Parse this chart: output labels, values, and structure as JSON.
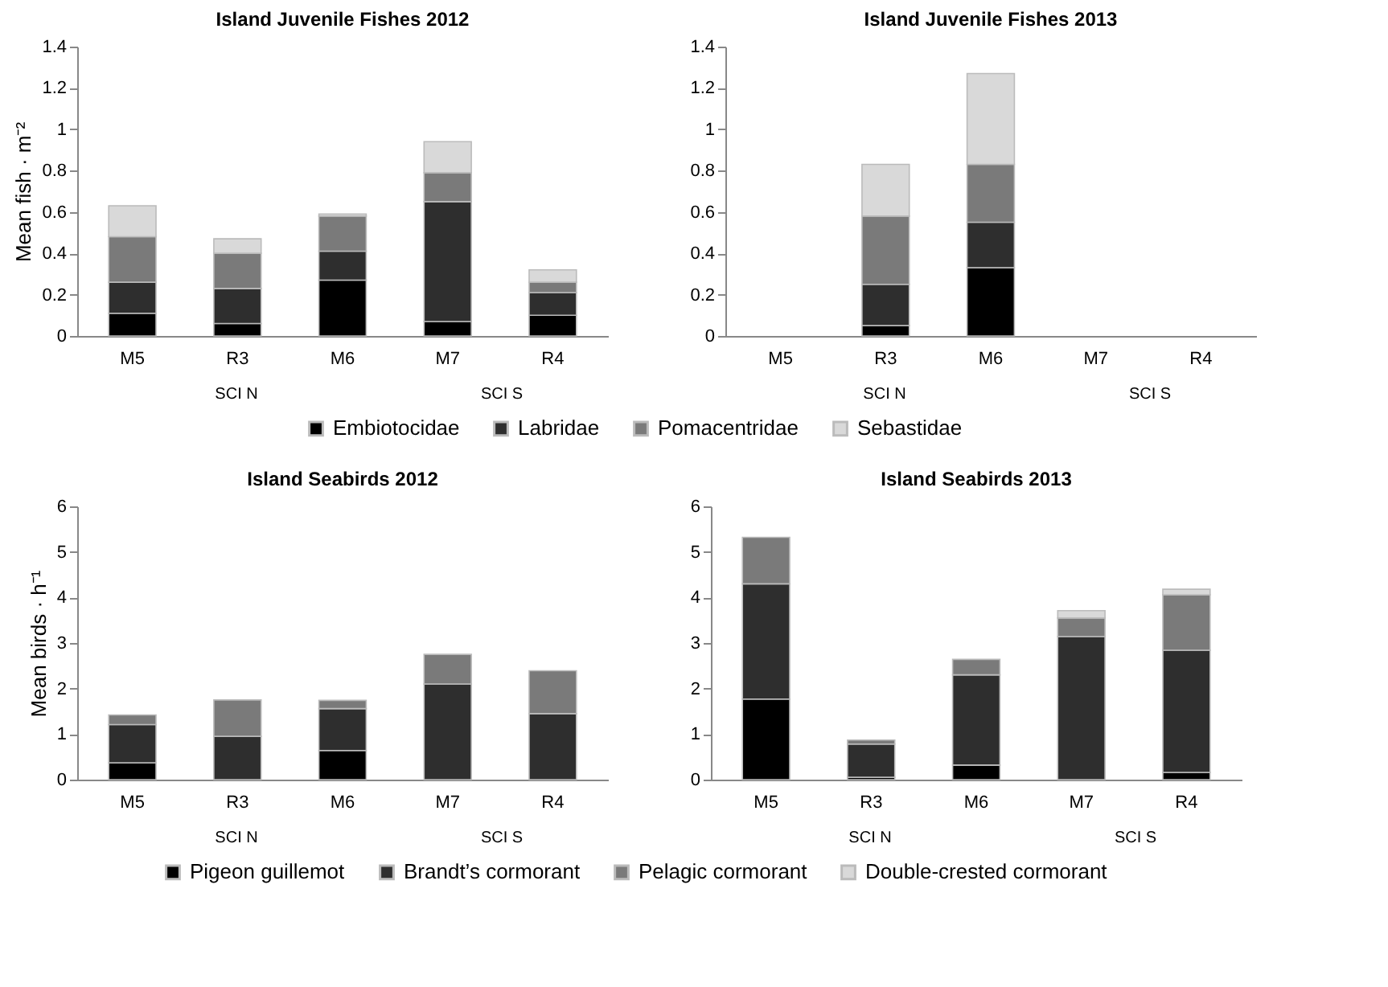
{
  "chart_data": [
    {
      "type": "bar",
      "title": "Island Juvenile Fishes 2012",
      "ylabel": "Mean fish · m⁻²",
      "categories": [
        "M5",
        "R3",
        "M6",
        "M7",
        "R4"
      ],
      "stacked": true,
      "ylim": [
        0,
        1.4
      ],
      "yticks": [
        0,
        0.2,
        0.4,
        0.6,
        0.8,
        1,
        1.2,
        1.4
      ],
      "legend": "bottom",
      "annotations": [
        "SCI N",
        "SCI S"
      ],
      "series": [
        {
          "name": "Embiotocidae",
          "color": "#000000",
          "values": [
            0.11,
            0.06,
            0.27,
            0.07,
            0.1
          ]
        },
        {
          "name": "Labridae",
          "color": "#2e2e2e",
          "values": [
            0.15,
            0.17,
            0.14,
            0.58,
            0.11
          ]
        },
        {
          "name": "Pomacentridae",
          "color": "#7a7a7a",
          "values": [
            0.22,
            0.17,
            0.17,
            0.14,
            0.05
          ]
        },
        {
          "name": "Sebastidae",
          "color": "#d9d9d9",
          "values": [
            0.15,
            0.07,
            0.01,
            0.15,
            0.06
          ]
        }
      ]
    },
    {
      "type": "bar",
      "title": "Island Juvenile Fishes 2013",
      "categories": [
        "M5",
        "R3",
        "M6",
        "M7",
        "R4"
      ],
      "stacked": true,
      "ylim": [
        0,
        1.4
      ],
      "yticks": [
        0,
        0.2,
        0.4,
        0.6,
        0.8,
        1,
        1.2,
        1.4
      ],
      "legend": "bottom",
      "annotations": [
        "SCI N",
        "SCI S"
      ],
      "series": [
        {
          "name": "Embiotocidae",
          "color": "#000000",
          "values": [
            null,
            0.05,
            0.33,
            null,
            null
          ]
        },
        {
          "name": "Labridae",
          "color": "#2e2e2e",
          "values": [
            null,
            0.2,
            0.22,
            null,
            null
          ]
        },
        {
          "name": "Pomacentridae",
          "color": "#7a7a7a",
          "values": [
            null,
            0.33,
            0.28,
            null,
            null
          ]
        },
        {
          "name": "Sebastidae",
          "color": "#d9d9d9",
          "values": [
            null,
            0.25,
            0.44,
            null,
            null
          ]
        }
      ]
    },
    {
      "type": "bar",
      "title": "Island Seabirds 2012",
      "ylabel": "Mean birds · h⁻¹",
      "categories": [
        "M5",
        "R3",
        "M6",
        "M7",
        "R4"
      ],
      "stacked": true,
      "ylim": [
        0,
        6
      ],
      "yticks": [
        0,
        1,
        2,
        3,
        4,
        5,
        6
      ],
      "legend": "bottom",
      "annotations": [
        "SCI N",
        "SCI S"
      ],
      "series": [
        {
          "name": "Pigeon guillemot",
          "color": "#000000",
          "values": [
            0.37,
            null,
            0.64,
            null,
            null
          ]
        },
        {
          "name": "Brandt’s cormorant",
          "color": "#2e2e2e",
          "values": [
            0.84,
            0.95,
            0.92,
            2.1,
            1.45
          ]
        },
        {
          "name": "Pelagic cormorant",
          "color": "#7a7a7a",
          "values": [
            0.21,
            0.8,
            0.18,
            0.65,
            0.94
          ]
        }
      ]
    },
    {
      "type": "bar",
      "title": "Island Seabirds 2013",
      "categories": [
        "M5",
        "R3",
        "M6",
        "M7",
        "R4"
      ],
      "stacked": true,
      "ylim": [
        0,
        6
      ],
      "yticks": [
        0,
        1,
        2,
        3,
        4,
        5,
        6
      ],
      "legend": "bottom",
      "annotations": [
        "SCI N",
        "SCI S"
      ],
      "series": [
        {
          "name": "Pigeon guillemot",
          "color": "#000000",
          "values": [
            1.77,
            0.05,
            0.32,
            null,
            0.16
          ]
        },
        {
          "name": "Brandt’s cormorant",
          "color": "#2e2e2e",
          "values": [
            2.53,
            0.73,
            1.98,
            3.14,
            2.68
          ]
        },
        {
          "name": "Pelagic cormorant",
          "color": "#7a7a7a",
          "values": [
            1.02,
            0.09,
            0.34,
            0.41,
            1.22
          ]
        },
        {
          "name": "Double-crested cormorant",
          "color": "#d9d9d9",
          "values": [
            null,
            null,
            null,
            0.16,
            0.12
          ]
        }
      ]
    }
  ]
}
